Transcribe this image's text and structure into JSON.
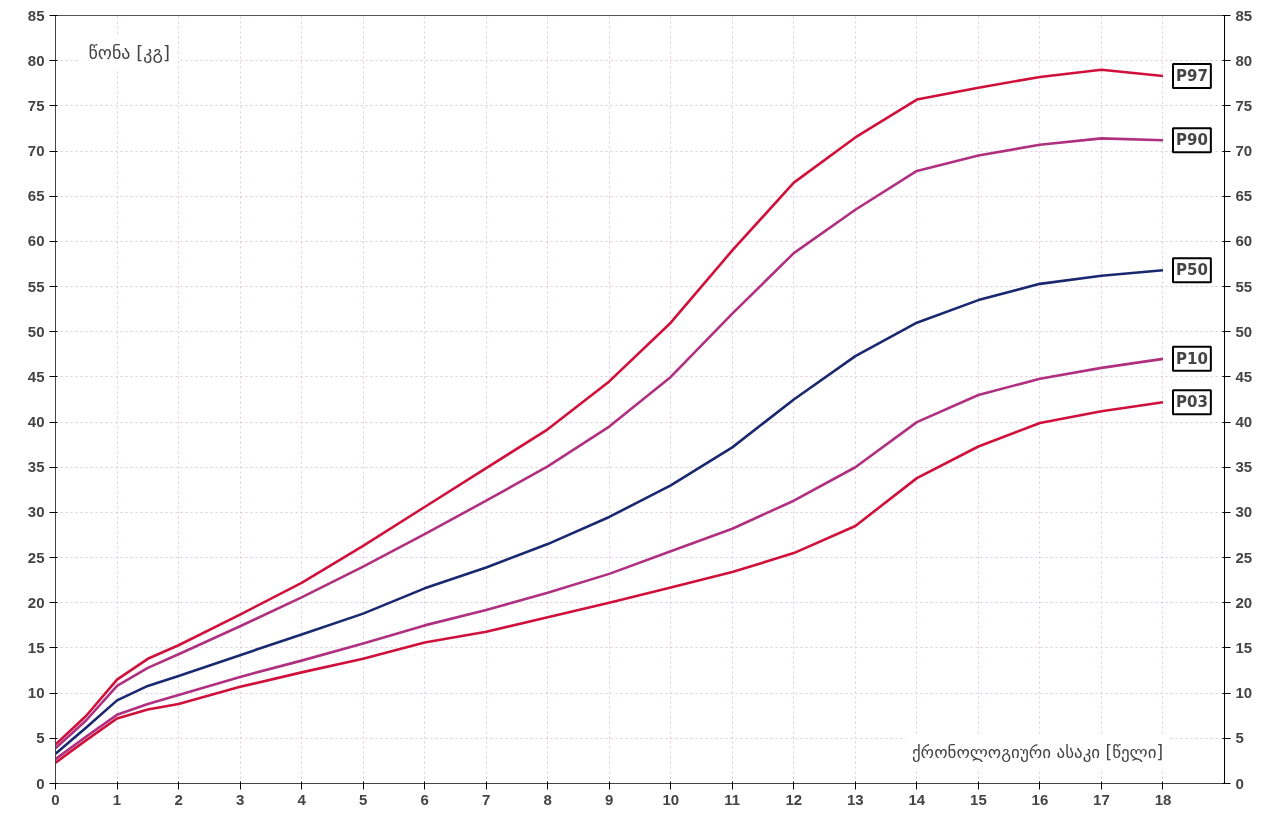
{
  "chart_data": {
    "type": "line",
    "xlabel": "ქრონოლოგიური ასაკი [წელი]",
    "ylabel": "წონა [კგ]",
    "x": [
      0,
      0.5,
      1,
      1.5,
      2,
      3,
      4,
      5,
      6,
      7,
      8,
      9,
      10,
      11,
      12,
      13,
      14,
      15,
      16,
      17,
      18
    ],
    "series": [
      {
        "name": "P97",
        "color": "#d0103a",
        "values": [
          4.3,
          7.5,
          11.5,
          13.8,
          15.3,
          18.7,
          22.2,
          26.3,
          30.6,
          34.9,
          39.2,
          44.5,
          51,
          59,
          66.5,
          71.5,
          75.7,
          77,
          78.2,
          79,
          78.3
        ]
      },
      {
        "name": "P90",
        "color": "#b03080",
        "values": [
          3.9,
          7,
          10.8,
          12.8,
          14.3,
          17.4,
          20.6,
          24,
          27.6,
          31.3,
          35.1,
          39.5,
          45,
          52,
          58.7,
          63.5,
          67.8,
          69.5,
          70.7,
          71.4,
          71.2
        ]
      },
      {
        "name": "P50",
        "color": "#1a2870",
        "values": [
          3.3,
          6.2,
          9.2,
          10.8,
          11.9,
          14.2,
          16.5,
          18.8,
          21.6,
          23.9,
          26.5,
          29.5,
          33,
          37.2,
          42.5,
          47.3,
          51,
          53.5,
          55.3,
          56.2,
          56.8
        ]
      },
      {
        "name": "P10",
        "color": "#b03080",
        "values": [
          2.7,
          5.2,
          7.6,
          8.8,
          9.8,
          11.8,
          13.6,
          15.5,
          17.5,
          19.2,
          21.1,
          23.2,
          25.7,
          28.2,
          31.3,
          35,
          40,
          43,
          44.8,
          46,
          47
        ]
      },
      {
        "name": "P03",
        "color": "#d0103a",
        "values": [
          2.3,
          4.8,
          7.2,
          8.2,
          8.8,
          10.7,
          12.3,
          13.8,
          15.6,
          16.8,
          18.4,
          20,
          21.7,
          23.4,
          25.5,
          28.5,
          33.8,
          37.3,
          39.9,
          41.2,
          42.2
        ]
      }
    ],
    "xlim": [
      0,
      19
    ],
    "xticks": [
      0,
      1,
      2,
      3,
      4,
      5,
      6,
      7,
      8,
      9,
      10,
      11,
      12,
      13,
      14,
      15,
      16,
      17,
      18
    ],
    "ylim": [
      0,
      85
    ],
    "yticks": [
      0,
      5,
      10,
      15,
      20,
      25,
      30,
      35,
      40,
      45,
      50,
      55,
      60,
      65,
      70,
      75,
      80,
      85
    ],
    "y2lim": [
      0,
      85
    ],
    "y2ticks": [
      0,
      5,
      10,
      15,
      20,
      25,
      30,
      35,
      40,
      45,
      50,
      55,
      60,
      65,
      70,
      75,
      80,
      85
    ],
    "grid": true,
    "line_style": "solid"
  }
}
